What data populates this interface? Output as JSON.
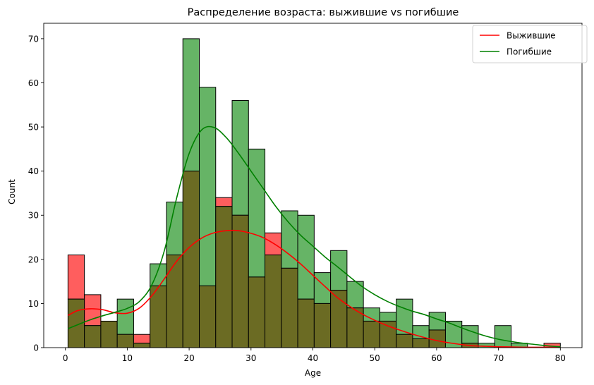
{
  "chart_data": {
    "type": "histogram",
    "title": "Распределение возраста: выжившие vs погибшие",
    "xlabel": "Age",
    "ylabel": "Count",
    "xlim": [
      -3.5,
      83.5
    ],
    "ylim": [
      0,
      73.5
    ],
    "xticks": [
      0,
      10,
      20,
      30,
      40,
      50,
      60,
      70,
      80
    ],
    "yticks": [
      0,
      10,
      20,
      30,
      40,
      50,
      60,
      70
    ],
    "bin_start": 0.42,
    "bin_width": 2.6527,
    "legend_position": "upper right",
    "series": [
      {
        "name": "Выжившие",
        "color": "#ff0000",
        "bar_fill": "#ff5e5e",
        "counts": [
          21,
          12,
          6,
          3,
          3,
          14,
          21,
          40,
          14,
          34,
          30,
          16,
          26,
          18,
          11,
          10,
          13,
          9,
          6,
          6,
          3,
          2,
          4,
          0,
          1,
          0,
          0,
          0,
          0,
          1
        ]
      },
      {
        "name": "Погибшие",
        "color": "#008000",
        "bar_fill": "#66b466",
        "counts": [
          11,
          5,
          6,
          11,
          1,
          19,
          33,
          70,
          59,
          32,
          56,
          45,
          21,
          31,
          30,
          17,
          22,
          15,
          9,
          8,
          11,
          5,
          8,
          6,
          5,
          1,
          5,
          1,
          0,
          0
        ]
      }
    ],
    "overlap_fill": "#6b6b23",
    "kde": [
      {
        "name": "Выжившие",
        "x": [
          0.42,
          2,
          4,
          6,
          8,
          10,
          12,
          14,
          16,
          18,
          20,
          22,
          24,
          26,
          28,
          30,
          32,
          34,
          36,
          38,
          40,
          42,
          44,
          46,
          48,
          50,
          52,
          54,
          56,
          58,
          60,
          62,
          64,
          66,
          68,
          70,
          72,
          74,
          76,
          78,
          80
        ],
        "y": [
          7.3,
          8.4,
          8.8,
          8.6,
          7.9,
          7.8,
          9.0,
          11.8,
          15.6,
          19.6,
          22.7,
          24.8,
          26.0,
          26.5,
          26.5,
          25.9,
          24.9,
          23.3,
          21.3,
          19.0,
          16.4,
          13.8,
          11.3,
          9.3,
          7.6,
          6.2,
          5.0,
          4.0,
          3.1,
          2.3,
          1.6,
          1.1,
          0.7,
          0.4,
          0.3,
          0.2,
          0.15,
          0.1,
          0.1,
          0.1,
          0.1
        ]
      },
      {
        "name": "Погибшие",
        "x": [
          0.42,
          2,
          4,
          6,
          8,
          10,
          12,
          14,
          16,
          18,
          20,
          22,
          24,
          26,
          28,
          30,
          32,
          34,
          36,
          38,
          40,
          42,
          44,
          46,
          48,
          50,
          52,
          54,
          56,
          58,
          60,
          62,
          64,
          66,
          68,
          70,
          72,
          74,
          76,
          78,
          80
        ],
        "y": [
          4.3,
          5.2,
          6.3,
          7.2,
          8.0,
          8.9,
          10.5,
          14.3,
          22.0,
          34.0,
          44.0,
          49.3,
          49.9,
          47.6,
          44.0,
          40.0,
          36.0,
          32.0,
          28.5,
          25.5,
          23.0,
          20.5,
          18.3,
          16.0,
          13.8,
          12.0,
          10.5,
          9.3,
          8.3,
          7.5,
          6.5,
          5.6,
          4.5,
          3.5,
          2.6,
          1.9,
          1.4,
          1.0,
          0.7,
          0.4,
          0.2
        ]
      }
    ]
  }
}
